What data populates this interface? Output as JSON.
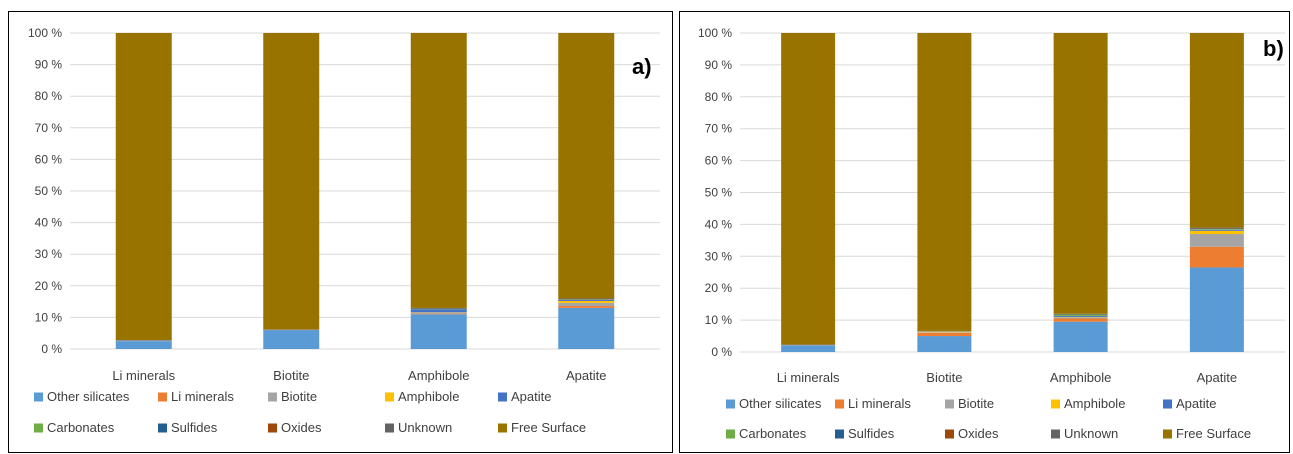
{
  "legend_items": [
    "Other silicates",
    "Li minerals",
    "Biotite",
    "Amphibole",
    "Apatite",
    "Carbonates",
    "Sulfides",
    "Oxides",
    "Unknown",
    "Free Surface"
  ],
  "colors": {
    "Other silicates": "#5b9bd5",
    "Li minerals": "#ed7d31",
    "Biotite": "#a5a5a5",
    "Amphibole": "#ffc000",
    "Apatite": "#4472c4",
    "Carbonates": "#70ad47",
    "Sulfides": "#255e91",
    "Oxides": "#9e480e",
    "Unknown": "#636363",
    "Free Surface": "#997300"
  },
  "chart_data": [
    {
      "type": "bar",
      "stacked": true,
      "panel_label": "a)",
      "categories": [
        "Li minerals",
        "Biotite",
        "Amphibole",
        "Apatite"
      ],
      "yticks": [
        "0 %",
        "10 %",
        "20 %",
        "30 %",
        "40 %",
        "50 %",
        "60 %",
        "70 %",
        "80 %",
        "90 %",
        "100 %"
      ],
      "ylim": [
        0,
        100
      ],
      "legend_position": "bottom",
      "series": [
        {
          "name": "Other silicates",
          "values": [
            2.5,
            6.0,
            11.0,
            13.0
          ]
        },
        {
          "name": "Li minerals",
          "values": [
            0.0,
            0.1,
            0.2,
            0.6
          ]
        },
        {
          "name": "Biotite",
          "values": [
            0.1,
            0.0,
            0.3,
            1.0
          ]
        },
        {
          "name": "Amphibole",
          "values": [
            0.0,
            0.0,
            0.1,
            0.6
          ]
        },
        {
          "name": "Apatite",
          "values": [
            0.1,
            0.0,
            1.0,
            0.4
          ]
        },
        {
          "name": "Carbonates",
          "values": [
            0.0,
            0.0,
            0.1,
            0.1
          ]
        },
        {
          "name": "Sulfides",
          "values": [
            0.0,
            0.0,
            0.0,
            0.0
          ]
        },
        {
          "name": "Oxides",
          "values": [
            0.0,
            0.0,
            0.0,
            0.1
          ]
        },
        {
          "name": "Unknown",
          "values": [
            0.1,
            0.1,
            0.3,
            0.2
          ]
        },
        {
          "name": "Free Surface",
          "values": [
            97.2,
            93.8,
            87.0,
            84.0
          ]
        }
      ]
    },
    {
      "type": "bar",
      "stacked": true,
      "panel_label": "b)",
      "categories": [
        "Li minerals",
        "Biotite",
        "Amphibole",
        "Apatite"
      ],
      "yticks": [
        "0 %",
        "10 %",
        "20 %",
        "30 %",
        "40 %",
        "50 %",
        "60 %",
        "70 %",
        "80 %",
        "90 %",
        "100 %"
      ],
      "ylim": [
        0,
        100
      ],
      "legend_position": "bottom",
      "series": [
        {
          "name": "Other silicates",
          "values": [
            2.0,
            5.0,
            9.5,
            26.5
          ]
        },
        {
          "name": "Li minerals",
          "values": [
            0.0,
            1.0,
            1.0,
            6.5
          ]
        },
        {
          "name": "Biotite",
          "values": [
            0.1,
            0.2,
            0.4,
            4.0
          ]
        },
        {
          "name": "Amphibole",
          "values": [
            0.0,
            0.2,
            0.1,
            1.0
          ]
        },
        {
          "name": "Apatite",
          "values": [
            0.1,
            0.1,
            0.3,
            0.3
          ]
        },
        {
          "name": "Carbonates",
          "values": [
            0.0,
            0.0,
            0.4,
            0.2
          ]
        },
        {
          "name": "Sulfides",
          "values": [
            0.0,
            0.0,
            0.0,
            0.1
          ]
        },
        {
          "name": "Oxides",
          "values": [
            0.0,
            0.0,
            0.0,
            0.1
          ]
        },
        {
          "name": "Unknown",
          "values": [
            0.1,
            0.1,
            0.3,
            0.3
          ]
        },
        {
          "name": "Free Surface",
          "values": [
            97.7,
            93.4,
            88.0,
            61.0
          ]
        }
      ]
    }
  ]
}
